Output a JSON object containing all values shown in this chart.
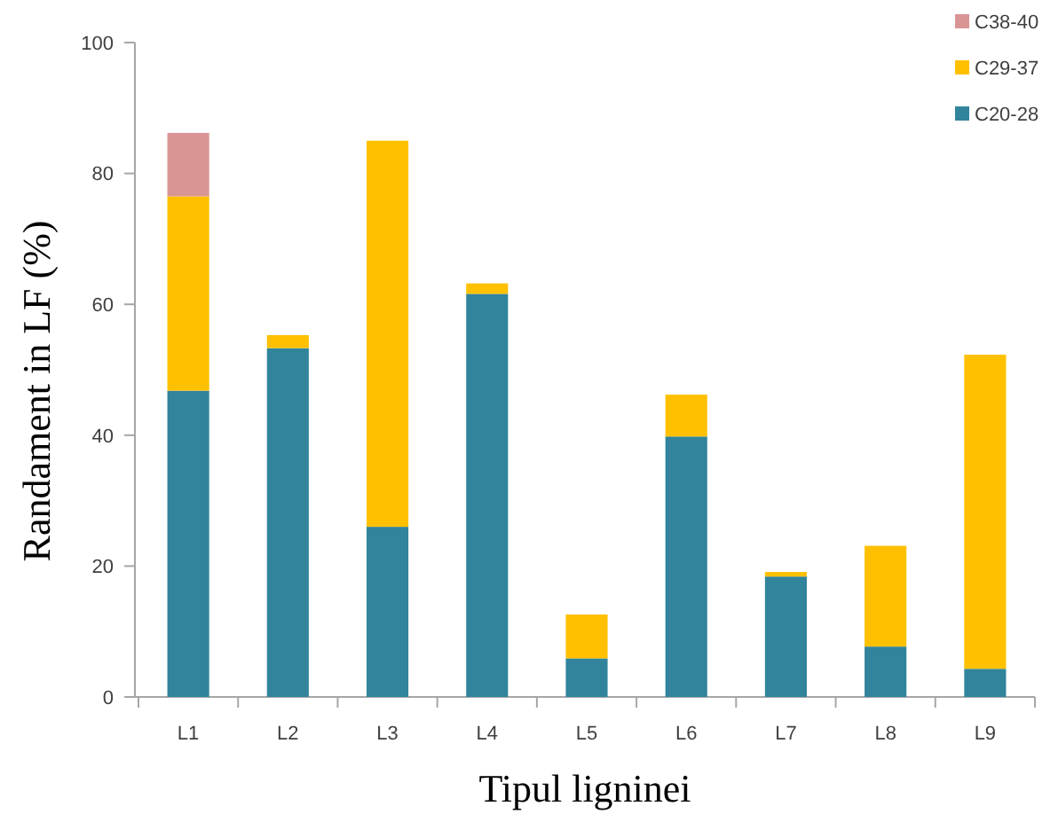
{
  "chart_data": {
    "type": "bar",
    "stacked": true,
    "xlabel": "Tipul ligninei",
    "ylabel": "Randament in LF (%)",
    "categories": [
      "L1",
      "L2",
      "L3",
      "L4",
      "L5",
      "L6",
      "L7",
      "L8",
      "L9"
    ],
    "series": [
      {
        "name": "C20-28",
        "color": "#31849b",
        "values": [
          46.8,
          53.3,
          26.0,
          61.6,
          5.9,
          39.8,
          18.4,
          7.7,
          4.3
        ]
      },
      {
        "name": "C29-37",
        "color": "#ffc000",
        "values": [
          29.7,
          2.0,
          59.0,
          1.6,
          6.7,
          6.4,
          0.7,
          15.4,
          48.0
        ]
      },
      {
        "name": "C38-40",
        "color": "#d99594",
        "values": [
          9.7,
          0,
          0,
          0,
          0,
          0,
          0,
          0,
          0
        ]
      }
    ],
    "ylim": [
      0,
      100
    ],
    "yticks": [
      0,
      20,
      40,
      60,
      80,
      100
    ],
    "legend": "top right"
  }
}
